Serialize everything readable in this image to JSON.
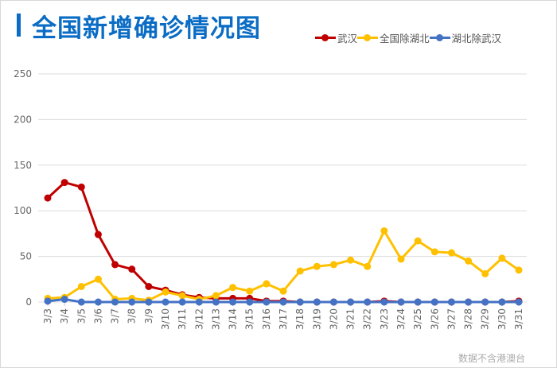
{
  "title": "全国新增确诊情况图",
  "watermark": "数据不含港澳台",
  "chart_data": {
    "type": "line",
    "title": "全国新增确诊情况图",
    "categories": [
      "3/3",
      "3/4",
      "3/5",
      "3/6",
      "3/7",
      "3/8",
      "3/9",
      "3/10",
      "3/11",
      "3/12",
      "3/13",
      "3/14",
      "3/15",
      "3/16",
      "3/17",
      "3/18",
      "3/19",
      "3/20",
      "3/21",
      "3/22",
      "3/23",
      "3/24",
      "3/25",
      "3/26",
      "3/27",
      "3/28",
      "3/29",
      "3/30",
      "3/31"
    ],
    "yticks": [
      "0",
      "50",
      "100",
      "150",
      "200",
      "250"
    ],
    "ylim": [
      0,
      250
    ],
    "grid": true,
    "legend_position": "top-right",
    "series": [
      {
        "name": "武汉",
        "color": "#c00000",
        "values": [
          114,
          131,
          126,
          74,
          41,
          36,
          17,
          13,
          8,
          5,
          4,
          4,
          4,
          1,
          1,
          0,
          0,
          0,
          0,
          0,
          1,
          0,
          0,
          0,
          0,
          0,
          0,
          0,
          1
        ]
      },
      {
        "name": "全国除湖北",
        "color": "#ffc000",
        "values": [
          4,
          5,
          17,
          25,
          3,
          4,
          2,
          11,
          7,
          3,
          7,
          16,
          12,
          20,
          12,
          34,
          39,
          41,
          46,
          39,
          78,
          47,
          67,
          55,
          54,
          45,
          31,
          48,
          35
        ]
      },
      {
        "name": "湖北除武汉",
        "color": "#4472c4",
        "values": [
          1,
          3,
          0,
          0,
          0,
          0,
          0,
          0,
          0,
          0,
          0,
          0,
          0,
          0,
          0,
          0,
          0,
          0,
          0,
          0,
          0,
          0,
          0,
          0,
          0,
          0,
          0,
          0,
          0
        ]
      }
    ]
  }
}
